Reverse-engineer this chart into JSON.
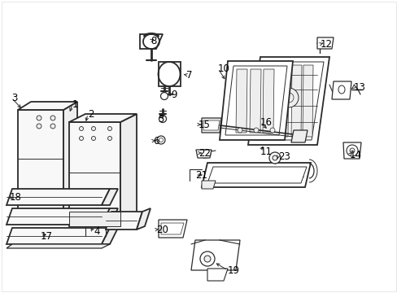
{
  "bg": "#ffffff",
  "lc": "#2a2a2a",
  "lw": 0.9,
  "fig_w": 4.89,
  "fig_h": 3.6,
  "dpi": 100,
  "border_color": "#dddddd",
  "label_fs": 8.5,
  "label_color": "#000000"
}
